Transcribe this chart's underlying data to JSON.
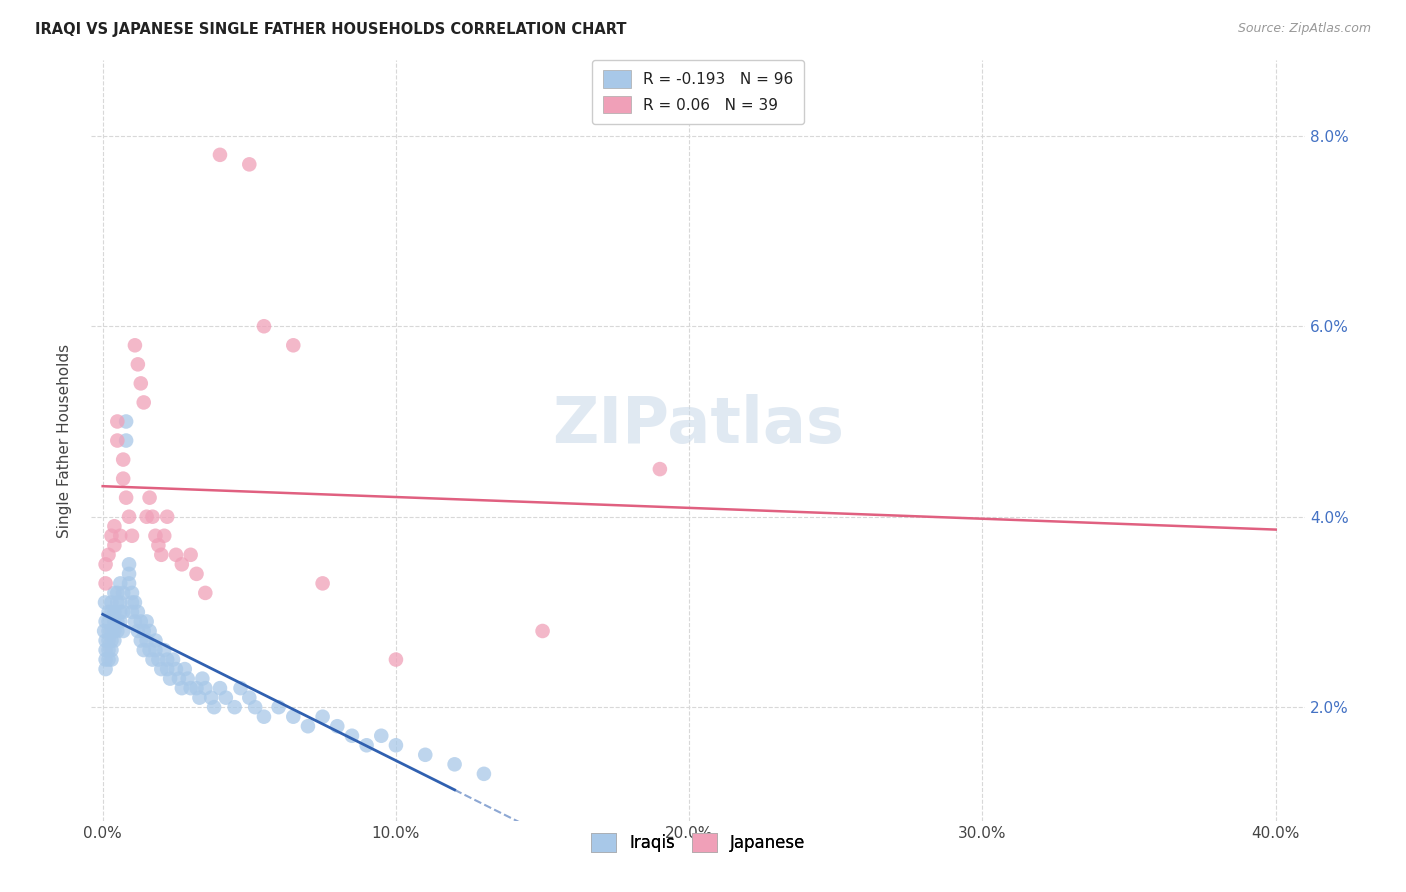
{
  "title": "IRAQI VS JAPANESE SINGLE FATHER HOUSEHOLDS CORRELATION CHART",
  "source": "Source: ZipAtlas.com",
  "ylabel": "Single Father Households",
  "watermark": "ZIPatlas",
  "iraqi_color": "#a8c8e8",
  "japanese_color": "#f0a0b8",
  "iraqi_line_color": "#3060b0",
  "japanese_line_color": "#e06080",
  "background_color": "#ffffff",
  "grid_color": "#d8d8d8",
  "iraqi_R": -0.193,
  "iraqi_N": 96,
  "japanese_R": 0.06,
  "japanese_N": 39,
  "xtick_vals": [
    0.0,
    0.1,
    0.2,
    0.3,
    0.4
  ],
  "xtick_labels": [
    "0.0%",
    "10.0%",
    "20.0%",
    "30.0%",
    "40.0%"
  ],
  "ytick_vals": [
    0.02,
    0.04,
    0.06,
    0.08
  ],
  "ytick_labels": [
    "2.0%",
    "4.0%",
    "6.0%",
    "8.0%"
  ],
  "xlim": [
    -0.004,
    0.41
  ],
  "ylim": [
    0.008,
    0.088
  ],
  "iraqi_x": [
    0.0005,
    0.0008,
    0.001,
    0.001,
    0.001,
    0.001,
    0.001,
    0.002,
    0.002,
    0.002,
    0.002,
    0.002,
    0.002,
    0.003,
    0.003,
    0.003,
    0.003,
    0.003,
    0.003,
    0.004,
    0.004,
    0.004,
    0.004,
    0.004,
    0.005,
    0.005,
    0.005,
    0.005,
    0.006,
    0.006,
    0.006,
    0.006,
    0.007,
    0.007,
    0.007,
    0.008,
    0.008,
    0.009,
    0.009,
    0.009,
    0.01,
    0.01,
    0.01,
    0.011,
    0.011,
    0.012,
    0.012,
    0.013,
    0.013,
    0.014,
    0.014,
    0.015,
    0.015,
    0.016,
    0.016,
    0.017,
    0.018,
    0.018,
    0.019,
    0.02,
    0.021,
    0.022,
    0.022,
    0.023,
    0.024,
    0.025,
    0.026,
    0.027,
    0.028,
    0.029,
    0.03,
    0.032,
    0.033,
    0.034,
    0.035,
    0.037,
    0.038,
    0.04,
    0.042,
    0.045,
    0.047,
    0.05,
    0.052,
    0.055,
    0.06,
    0.065,
    0.07,
    0.075,
    0.08,
    0.085,
    0.09,
    0.095,
    0.1,
    0.11,
    0.12,
    0.13
  ],
  "iraqi_y": [
    0.028,
    0.031,
    0.025,
    0.024,
    0.026,
    0.027,
    0.029,
    0.025,
    0.026,
    0.027,
    0.028,
    0.029,
    0.03,
    0.027,
    0.028,
    0.03,
    0.031,
    0.026,
    0.025,
    0.028,
    0.029,
    0.03,
    0.032,
    0.027,
    0.029,
    0.031,
    0.032,
    0.028,
    0.03,
    0.031,
    0.033,
    0.029,
    0.03,
    0.032,
    0.028,
    0.05,
    0.048,
    0.035,
    0.034,
    0.033,
    0.03,
    0.031,
    0.032,
    0.029,
    0.031,
    0.028,
    0.03,
    0.027,
    0.029,
    0.026,
    0.028,
    0.027,
    0.029,
    0.026,
    0.028,
    0.025,
    0.027,
    0.026,
    0.025,
    0.024,
    0.026,
    0.025,
    0.024,
    0.023,
    0.025,
    0.024,
    0.023,
    0.022,
    0.024,
    0.023,
    0.022,
    0.022,
    0.021,
    0.023,
    0.022,
    0.021,
    0.02,
    0.022,
    0.021,
    0.02,
    0.022,
    0.021,
    0.02,
    0.019,
    0.02,
    0.019,
    0.018,
    0.019,
    0.018,
    0.017,
    0.016,
    0.017,
    0.016,
    0.015,
    0.014,
    0.013
  ],
  "japanese_x": [
    0.001,
    0.001,
    0.002,
    0.003,
    0.004,
    0.004,
    0.005,
    0.005,
    0.006,
    0.007,
    0.007,
    0.008,
    0.009,
    0.01,
    0.011,
    0.012,
    0.013,
    0.014,
    0.015,
    0.016,
    0.017,
    0.018,
    0.019,
    0.02,
    0.021,
    0.022,
    0.025,
    0.027,
    0.03,
    0.032,
    0.035,
    0.04,
    0.05,
    0.055,
    0.065,
    0.075,
    0.1,
    0.15,
    0.19
  ],
  "japanese_y": [
    0.033,
    0.035,
    0.036,
    0.038,
    0.037,
    0.039,
    0.05,
    0.048,
    0.038,
    0.046,
    0.044,
    0.042,
    0.04,
    0.038,
    0.058,
    0.056,
    0.054,
    0.052,
    0.04,
    0.042,
    0.04,
    0.038,
    0.037,
    0.036,
    0.038,
    0.04,
    0.036,
    0.035,
    0.036,
    0.034,
    0.032,
    0.078,
    0.077,
    0.06,
    0.058,
    0.033,
    0.025,
    0.028,
    0.045
  ]
}
